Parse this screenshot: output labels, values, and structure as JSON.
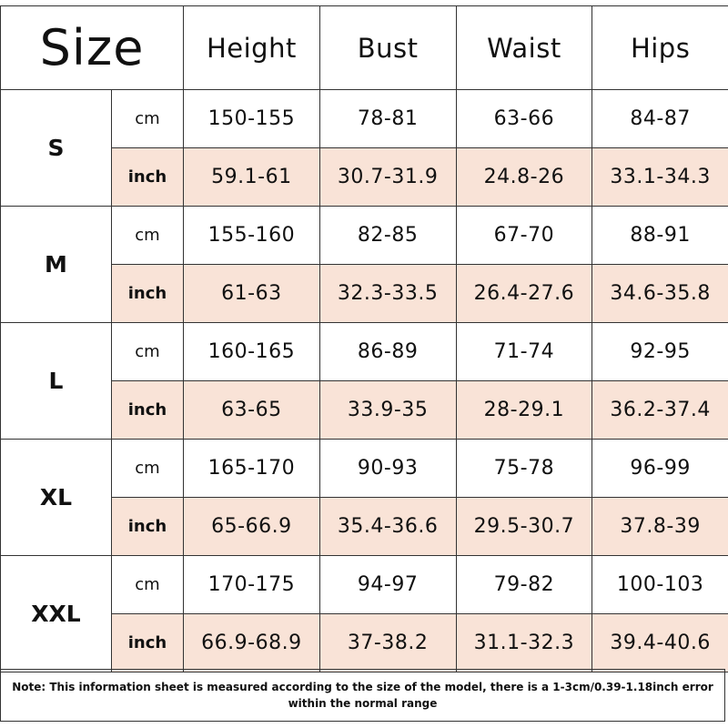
{
  "header": {
    "size_label": "Size",
    "columns": [
      "Height",
      "Bust",
      "Waist",
      "Hips"
    ]
  },
  "sizes": [
    {
      "size": "S",
      "rows": [
        {
          "unit": "cm",
          "values": [
            "150-155",
            "78-81",
            "63-66",
            "84-87"
          ]
        },
        {
          "unit": "inch",
          "values": [
            "59.1-61",
            "30.7-31.9",
            "24.8-26",
            "33.1-34.3"
          ]
        }
      ]
    },
    {
      "size": "M",
      "rows": [
        {
          "unit": "cm",
          "values": [
            "155-160",
            "82-85",
            "67-70",
            "88-91"
          ]
        },
        {
          "unit": "inch",
          "values": [
            "61-63",
            "32.3-33.5",
            "26.4-27.6",
            "34.6-35.8"
          ]
        }
      ]
    },
    {
      "size": "L",
      "rows": [
        {
          "unit": "cm",
          "values": [
            "160-165",
            "86-89",
            "71-74",
            "92-95"
          ]
        },
        {
          "unit": "inch",
          "values": [
            "63-65",
            "33.9-35",
            "28-29.1",
            "36.2-37.4"
          ]
        }
      ]
    },
    {
      "size": "XL",
      "rows": [
        {
          "unit": "cm",
          "values": [
            "165-170",
            "90-93",
            "75-78",
            "96-99"
          ]
        },
        {
          "unit": "inch",
          "values": [
            "65-66.9",
            "35.4-36.6",
            "29.5-30.7",
            "37.8-39"
          ]
        }
      ]
    },
    {
      "size": "XXL",
      "rows": [
        {
          "unit": "cm",
          "values": [
            "170-175",
            "94-97",
            "79-82",
            "100-103"
          ]
        },
        {
          "unit": "inch",
          "values": [
            "66.9-68.9",
            "37-38.2",
            "31.1-32.3",
            "39.4-40.6"
          ]
        }
      ]
    }
  ],
  "note": "Note: This information sheet is measured according to the size of the model, there is a 1-3cm/0.39-1.18inch error within the normal range",
  "colors": {
    "inch_row_bg": "#f9e3d7",
    "border": "#333333"
  }
}
